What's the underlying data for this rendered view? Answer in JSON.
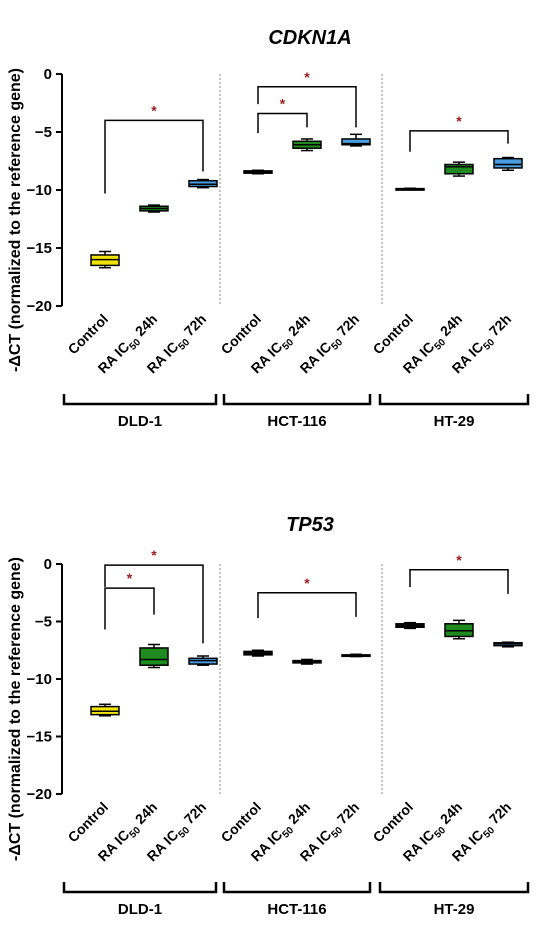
{
  "colors": {
    "Control": {
      "DLD-1": "#f2e30f",
      "HCT-116": "#1b1b1b",
      "HT-29": "#1b1b1b"
    },
    "RA IC50 24h": "#1f8a1f",
    "RA IC50 72h": "#4a9de0",
    "significance": "#9c1c1c",
    "whisker": "#000000"
  },
  "shared": {
    "ylabel": "-ΔCT (normalized to the reference gene)",
    "groups": [
      "DLD-1",
      "HCT-116",
      "HT-29"
    ],
    "conditions": [
      {
        "prefix": "",
        "sub": "",
        "suffix": "Control"
      },
      {
        "prefix": "RA IC",
        "sub": "50",
        "suffix": " 24h"
      },
      {
        "prefix": "RA IC",
        "sub": "50",
        "suffix": " 72h"
      }
    ]
  },
  "chart_data": [
    {
      "type": "box",
      "title": "CDKN1A",
      "ylabel": "-ΔCT (normalized to the reference gene)",
      "ylim": [
        -20,
        0
      ],
      "yticks": [
        0,
        -5,
        -10,
        -15,
        -20
      ],
      "groups": [
        "DLD-1",
        "HCT-116",
        "HT-29"
      ],
      "categories": [
        "Control",
        "RA IC50 24h",
        "RA IC50 72h"
      ],
      "boxes": [
        {
          "group": "DLD-1",
          "category": "Control",
          "min": -16.7,
          "q1": -16.5,
          "median": -16.0,
          "q3": -15.6,
          "max": -15.3
        },
        {
          "group": "DLD-1",
          "category": "RA IC50 24h",
          "min": -11.9,
          "q1": -11.8,
          "median": -11.6,
          "q3": -11.4,
          "max": -11.3
        },
        {
          "group": "DLD-1",
          "category": "RA IC50 72h",
          "min": -9.8,
          "q1": -9.7,
          "median": -9.5,
          "q3": -9.2,
          "max": -9.1
        },
        {
          "group": "HCT-116",
          "category": "Control",
          "min": -8.6,
          "q1": -8.55,
          "median": -8.45,
          "q3": -8.35,
          "max": -8.3
        },
        {
          "group": "HCT-116",
          "category": "RA IC50 24h",
          "min": -6.6,
          "q1": -6.4,
          "median": -6.1,
          "q3": -5.8,
          "max": -5.6
        },
        {
          "group": "HCT-116",
          "category": "RA IC50 72h",
          "min": -6.2,
          "q1": -6.1,
          "median": -6.0,
          "q3": -5.6,
          "max": -5.2
        },
        {
          "group": "HT-29",
          "category": "Control",
          "min": -9.95,
          "q1": -9.92,
          "median": -9.9,
          "q3": -9.88,
          "max": -9.85
        },
        {
          "group": "HT-29",
          "category": "RA IC50 24h",
          "min": -8.8,
          "q1": -8.6,
          "median": -8.0,
          "q3": -7.8,
          "max": -7.6
        },
        {
          "group": "HT-29",
          "category": "RA IC50 72h",
          "min": -8.3,
          "q1": -8.1,
          "median": -7.8,
          "q3": -7.3,
          "max": -7.2
        }
      ],
      "significance": [
        {
          "group": "DLD-1",
          "from": "Control",
          "to": "RA IC50 72h",
          "label": "*",
          "y": -4.0,
          "from_tip": -10.3,
          "to_tip": -8.4
        },
        {
          "group": "HCT-116",
          "from": "Control",
          "to": "RA IC50 24h",
          "label": "*",
          "y": -3.4,
          "from_tip": -5.1,
          "to_tip": -4.6
        },
        {
          "group": "HCT-116",
          "from": "Control",
          "to": "RA IC50 72h",
          "label": "*",
          "y": -1.1,
          "from_tip": -2.6,
          "to_tip": -4.6
        },
        {
          "group": "HT-29",
          "from": "Control",
          "to": "RA IC50 72h",
          "label": "*",
          "y": -4.9,
          "from_tip": -6.7,
          "to_tip": -6.0
        }
      ]
    },
    {
      "type": "box",
      "title": "TP53",
      "ylabel": "-ΔCT (normalized to the reference gene)",
      "ylim": [
        -20,
        0
      ],
      "yticks": [
        0,
        -5,
        -10,
        -15,
        -20
      ],
      "groups": [
        "DLD-1",
        "HCT-116",
        "HT-29"
      ],
      "categories": [
        "Control",
        "RA IC50 24h",
        "RA IC50 72h"
      ],
      "boxes": [
        {
          "group": "DLD-1",
          "category": "Control",
          "min": -13.2,
          "q1": -13.1,
          "median": -12.8,
          "q3": -12.4,
          "max": -12.2
        },
        {
          "group": "DLD-1",
          "category": "RA IC50 24h",
          "min": -9.0,
          "q1": -8.8,
          "median": -8.3,
          "q3": -7.3,
          "max": -7.0
        },
        {
          "group": "DLD-1",
          "category": "RA IC50 72h",
          "min": -8.8,
          "q1": -8.7,
          "median": -8.4,
          "q3": -8.2,
          "max": -8.0
        },
        {
          "group": "HCT-116",
          "category": "Control",
          "min": -8.0,
          "q1": -7.9,
          "median": -7.75,
          "q3": -7.6,
          "max": -7.5
        },
        {
          "group": "HCT-116",
          "category": "RA IC50 24h",
          "min": -8.7,
          "q1": -8.6,
          "median": -8.5,
          "q3": -8.4,
          "max": -8.3
        },
        {
          "group": "HCT-116",
          "category": "RA IC50 72h",
          "min": -8.05,
          "q1": -8.0,
          "median": -7.95,
          "q3": -7.9,
          "max": -7.85
        },
        {
          "group": "HT-29",
          "category": "Control",
          "min": -5.6,
          "q1": -5.5,
          "median": -5.35,
          "q3": -5.2,
          "max": -5.1
        },
        {
          "group": "HT-29",
          "category": "RA IC50 24h",
          "min": -6.5,
          "q1": -6.3,
          "median": -5.8,
          "q3": -5.2,
          "max": -4.9
        },
        {
          "group": "HT-29",
          "category": "RA IC50 72h",
          "min": -7.2,
          "q1": -7.1,
          "median": -6.95,
          "q3": -6.85,
          "max": -6.8
        }
      ],
      "significance": [
        {
          "group": "DLD-1",
          "from": "Control",
          "to": "RA IC50 24h",
          "label": "*",
          "y": -2.1,
          "from_tip": -5.7,
          "to_tip": -4.4
        },
        {
          "group": "DLD-1",
          "from": "Control",
          "to": "RA IC50 72h",
          "label": "*",
          "y": -0.1,
          "from_tip": -2.0,
          "to_tip": -6.9
        },
        {
          "group": "HCT-116",
          "from": "Control",
          "to": "RA IC50 72h",
          "label": "*",
          "y": -2.5,
          "from_tip": -4.7,
          "to_tip": -4.6
        },
        {
          "group": "HT-29",
          "from": "Control",
          "to": "RA IC50 72h",
          "label": "*",
          "y": -0.5,
          "from_tip": -2.0,
          "to_tip": -2.6
        }
      ]
    }
  ]
}
